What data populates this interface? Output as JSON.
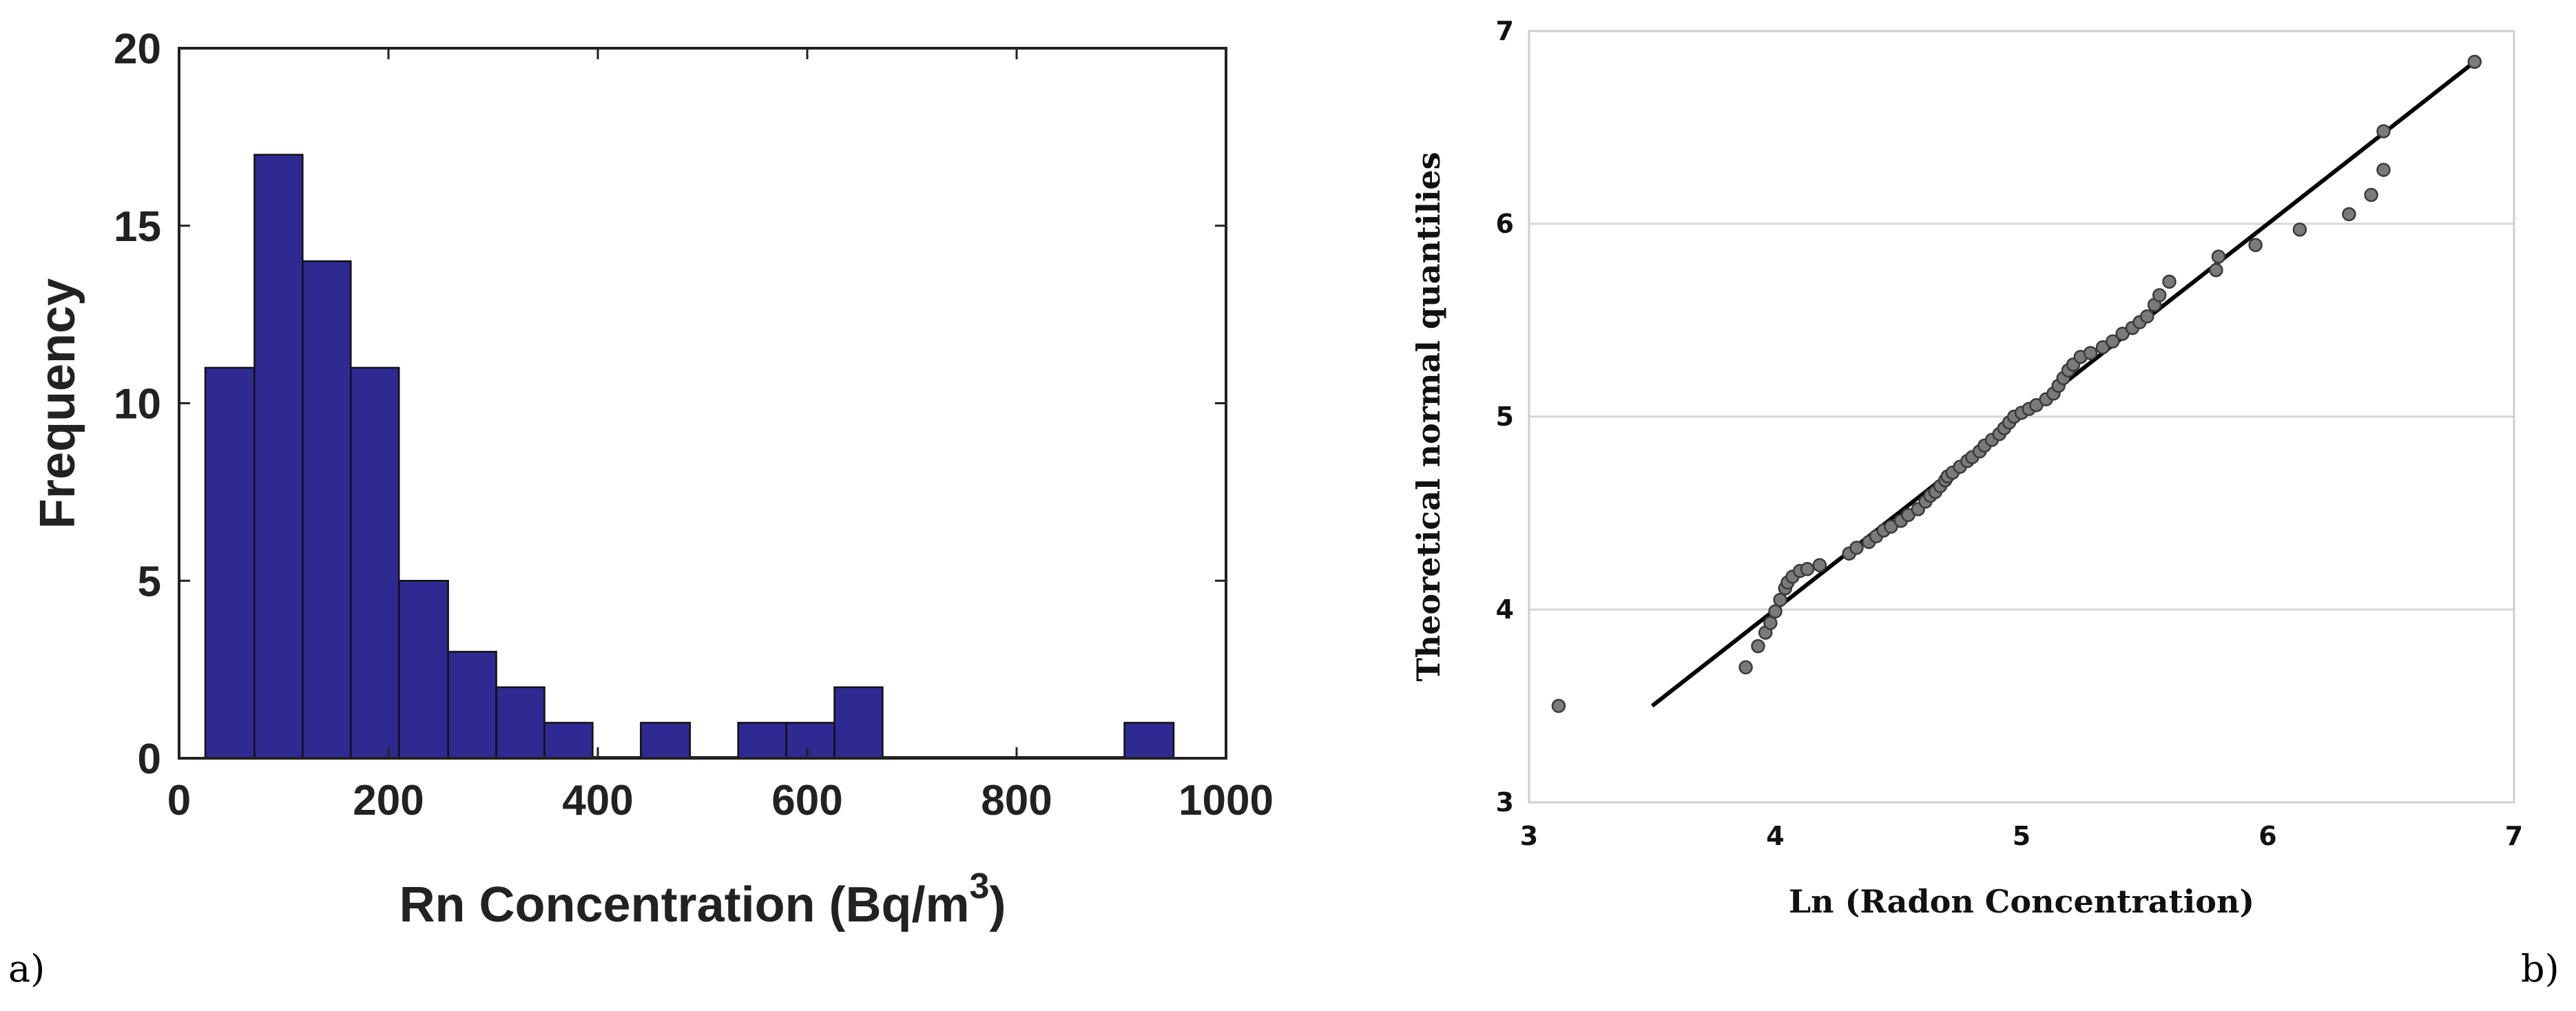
{
  "panel_labels": {
    "left": "a)",
    "right": "b)"
  },
  "colors": {
    "bar_fill": "#2e2a92",
    "bar_edge": "#111111",
    "point_fill": "#7a7a7a",
    "point_edge": "#3a3a3a",
    "fit_line": "#000000",
    "grid": "#d6d6d6"
  },
  "chart_data": [
    {
      "type": "bar",
      "subtype": "histogram",
      "title": "",
      "xlabel": "Rn Concentration (Bq/m",
      "xlabel_superscript": "3",
      "xlabel_close": ")",
      "ylabel": "Frequency",
      "xlim": [
        0,
        1000
      ],
      "ylim": [
        0,
        20
      ],
      "xticks": [
        0,
        200,
        400,
        600,
        800,
        1000
      ],
      "yticks": [
        0,
        5,
        10,
        15,
        20
      ],
      "xtick_labels": [
        "0",
        "200",
        "400",
        "600",
        "800",
        "1000"
      ],
      "ytick_labels": [
        "0",
        "5",
        "10",
        "15",
        "20"
      ],
      "grid": false,
      "bins": [
        {
          "x0": 25,
          "x1": 72,
          "count": 11
        },
        {
          "x0": 72,
          "x1": 118,
          "count": 17
        },
        {
          "x0": 118,
          "x1": 164,
          "count": 14
        },
        {
          "x0": 164,
          "x1": 210,
          "count": 11
        },
        {
          "x0": 210,
          "x1": 257,
          "count": 5
        },
        {
          "x0": 257,
          "x1": 303,
          "count": 3
        },
        {
          "x0": 303,
          "x1": 349,
          "count": 2
        },
        {
          "x0": 349,
          "x1": 395,
          "count": 1
        },
        {
          "x0": 395,
          "x1": 441,
          "count": 0
        },
        {
          "x0": 441,
          "x1": 488,
          "count": 1
        },
        {
          "x0": 488,
          "x1": 534,
          "count": 0
        },
        {
          "x0": 534,
          "x1": 580,
          "count": 1
        },
        {
          "x0": 580,
          "x1": 626,
          "count": 1
        },
        {
          "x0": 626,
          "x1": 672,
          "count": 2
        },
        {
          "x0": 672,
          "x1": 719,
          "count": 0
        },
        {
          "x0": 719,
          "x1": 765,
          "count": 0
        },
        {
          "x0": 765,
          "x1": 811,
          "count": 0
        },
        {
          "x0": 811,
          "x1": 857,
          "count": 0
        },
        {
          "x0": 857,
          "x1": 903,
          "count": 0
        },
        {
          "x0": 903,
          "x1": 950,
          "count": 1
        }
      ]
    },
    {
      "type": "scatter",
      "subtype": "qq-plot",
      "title": "",
      "xlabel": "Ln (Radon Concentration)",
      "ylabel": "Theoretical normal quantilies",
      "xlim": [
        3,
        7
      ],
      "ylim": [
        3,
        7
      ],
      "xticks": [
        3,
        4,
        5,
        6,
        7
      ],
      "yticks": [
        3,
        4,
        5,
        6,
        7
      ],
      "xtick_labels": [
        "3",
        "4",
        "5",
        "6",
        "7"
      ],
      "ytick_labels": [
        "3",
        "4",
        "5",
        "6",
        "7"
      ],
      "grid": "horizontal",
      "fit_line": {
        "x": [
          3.5,
          6.85
        ],
        "y": [
          3.5,
          6.85
        ]
      },
      "points": [
        [
          3.12,
          3.5
        ],
        [
          3.88,
          3.7
        ],
        [
          3.93,
          3.81
        ],
        [
          3.96,
          3.88
        ],
        [
          3.98,
          3.93
        ],
        [
          4.0,
          3.99
        ],
        [
          4.02,
          4.05
        ],
        [
          4.04,
          4.11
        ],
        [
          4.05,
          4.14
        ],
        [
          4.07,
          4.17
        ],
        [
          4.1,
          4.2
        ],
        [
          4.13,
          4.21
        ],
        [
          4.18,
          4.23
        ],
        [
          4.3,
          4.29
        ],
        [
          4.33,
          4.32
        ],
        [
          4.38,
          4.35
        ],
        [
          4.41,
          4.38
        ],
        [
          4.44,
          4.41
        ],
        [
          4.47,
          4.43
        ],
        [
          4.51,
          4.46
        ],
        [
          4.54,
          4.49
        ],
        [
          4.58,
          4.52
        ],
        [
          4.61,
          4.56
        ],
        [
          4.63,
          4.59
        ],
        [
          4.65,
          4.61
        ],
        [
          4.67,
          4.64
        ],
        [
          4.69,
          4.67
        ],
        [
          4.7,
          4.69
        ],
        [
          4.72,
          4.71
        ],
        [
          4.75,
          4.74
        ],
        [
          4.78,
          4.77
        ],
        [
          4.8,
          4.79
        ],
        [
          4.83,
          4.82
        ],
        [
          4.85,
          4.85
        ],
        [
          4.88,
          4.88
        ],
        [
          4.91,
          4.91
        ],
        [
          4.93,
          4.94
        ],
        [
          4.95,
          4.97
        ],
        [
          4.97,
          5.0
        ],
        [
          5.0,
          5.02
        ],
        [
          5.03,
          5.04
        ],
        [
          5.06,
          5.06
        ],
        [
          5.1,
          5.09
        ],
        [
          5.13,
          5.12
        ],
        [
          5.15,
          5.16
        ],
        [
          5.17,
          5.2
        ],
        [
          5.19,
          5.24
        ],
        [
          5.21,
          5.27
        ],
        [
          5.24,
          5.31
        ],
        [
          5.28,
          5.33
        ],
        [
          5.33,
          5.36
        ],
        [
          5.37,
          5.39
        ],
        [
          5.41,
          5.43
        ],
        [
          5.45,
          5.46
        ],
        [
          5.48,
          5.49
        ],
        [
          5.51,
          5.52
        ],
        [
          5.54,
          5.58
        ],
        [
          5.56,
          5.63
        ],
        [
          5.6,
          5.7
        ],
        [
          5.79,
          5.76
        ],
        [
          5.8,
          5.83
        ],
        [
          5.95,
          5.89
        ],
        [
          6.13,
          5.97
        ],
        [
          6.33,
          6.05
        ],
        [
          6.42,
          6.15
        ],
        [
          6.47,
          6.28
        ],
        [
          6.47,
          6.48
        ],
        [
          6.84,
          6.84
        ]
      ]
    }
  ]
}
